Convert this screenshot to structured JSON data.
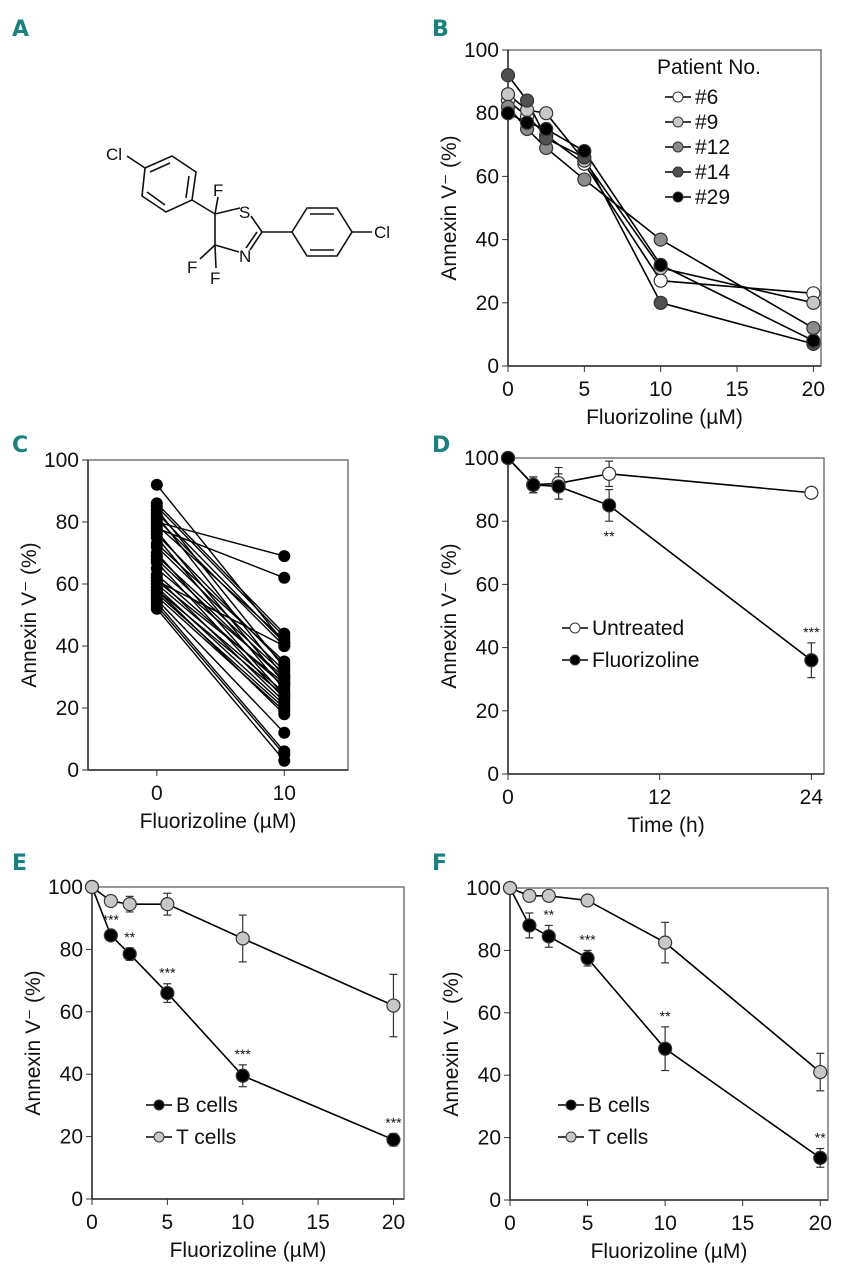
{
  "panel_labels": [
    "A",
    "B",
    "C",
    "D",
    "E",
    "F"
  ],
  "structure": {
    "atoms": {
      "cl1": "Cl",
      "cl2": "Cl",
      "f1": "F",
      "f2": "F",
      "f3": "F",
      "s": "S",
      "n": "N"
    }
  },
  "chart_data": [
    {
      "id": "B",
      "type": "line",
      "xlabel": "Fluorizoline (µM)",
      "ylabel": "Annexin V⁻ (%)",
      "xlim": [
        0,
        20.5
      ],
      "ylim": [
        0,
        100
      ],
      "xticks": [
        0,
        5,
        10,
        15,
        20
      ],
      "yticks": [
        0,
        20,
        40,
        60,
        80,
        100
      ],
      "legend_title": "Patient No.",
      "legend_position": "top-right",
      "x": [
        0,
        1.25,
        2.5,
        5,
        10,
        20
      ],
      "series": [
        {
          "name": "#6",
          "color": "#ffffff",
          "values": [
            84,
            79,
            73,
            64,
            27,
            23
          ]
        },
        {
          "name": "#9",
          "color": "#c8c8c8",
          "values": [
            86,
            81,
            80,
            65,
            31,
            20
          ]
        },
        {
          "name": "#12",
          "color": "#8c8c8c",
          "values": [
            82,
            75,
            69,
            59,
            40,
            12
          ]
        },
        {
          "name": "#14",
          "color": "#505050",
          "values": [
            92,
            84,
            72,
            66,
            20,
            7
          ]
        },
        {
          "name": "#29",
          "color": "#000000",
          "values": [
            80,
            77,
            75,
            68,
            32,
            8
          ]
        }
      ]
    },
    {
      "id": "C",
      "type": "line",
      "xlabel": "Fluorizoline (µM)",
      "ylabel": "Annexin V⁻ (%)",
      "xlim": [
        -5.4,
        15
      ],
      "ylim": [
        0,
        100
      ],
      "xticks": [
        0,
        10
      ],
      "yticks": [
        0,
        20,
        40,
        60,
        80,
        100
      ],
      "x": [
        0,
        10
      ],
      "pairs": [
        [
          92,
          41
        ],
        [
          86,
          44
        ],
        [
          85,
          43
        ],
        [
          84,
          33
        ],
        [
          83,
          41
        ],
        [
          82,
          30
        ],
        [
          81,
          40
        ],
        [
          80,
          69
        ],
        [
          79,
          42
        ],
        [
          78,
          62
        ],
        [
          77,
          28
        ],
        [
          76,
          34
        ],
        [
          75,
          26
        ],
        [
          72,
          32
        ],
        [
          70,
          24
        ],
        [
          69,
          31
        ],
        [
          68,
          29
        ],
        [
          67,
          23
        ],
        [
          63,
          27
        ],
        [
          62,
          22
        ],
        [
          61,
          40
        ],
        [
          60,
          25
        ],
        [
          59,
          21
        ],
        [
          58,
          18
        ],
        [
          57,
          20
        ],
        [
          56,
          19
        ],
        [
          55,
          12
        ],
        [
          54,
          6
        ],
        [
          53,
          5
        ],
        [
          52,
          3
        ],
        [
          61,
          28
        ],
        [
          65,
          30
        ],
        [
          73,
          35
        ],
        [
          58,
          24
        ]
      ]
    },
    {
      "id": "D",
      "type": "line",
      "xlabel": "Time (h)",
      "ylabel": "Annexin V⁻ (%)",
      "xlim": [
        0,
        25
      ],
      "ylim": [
        0,
        100
      ],
      "xticks": [
        0,
        12,
        24
      ],
      "yticks": [
        0,
        20,
        40,
        60,
        80,
        100
      ],
      "legend_position": "center",
      "x": [
        0,
        2,
        4,
        8,
        24
      ],
      "series": [
        {
          "name": "Untreated",
          "color": "#ffffff",
          "values": [
            100,
            91.5,
            92,
            95,
            89
          ],
          "errors": [
            0,
            2.5,
            5,
            4,
            1
          ],
          "stars": [
            "",
            "",
            "",
            "",
            ""
          ]
        },
        {
          "name": "Fluorizoline",
          "color": "#000000",
          "values": [
            100,
            91.5,
            91,
            85,
            36
          ],
          "errors": [
            0,
            2.5,
            4,
            5,
            5.5
          ],
          "stars": [
            "",
            "",
            "",
            "**",
            "***"
          ]
        }
      ]
    },
    {
      "id": "E",
      "type": "line",
      "xlabel": "Fluorizoline (µM)",
      "ylabel": "Annexin V⁻ (%)",
      "xlim": [
        0,
        20.7
      ],
      "ylim": [
        0,
        100
      ],
      "xticks": [
        0,
        5,
        10,
        15,
        20
      ],
      "yticks": [
        0,
        20,
        40,
        60,
        80,
        100
      ],
      "legend_position": "bottom-left",
      "x": [
        0,
        1.25,
        2.5,
        5,
        10,
        20
      ],
      "series": [
        {
          "name": "B cells",
          "color": "#000000",
          "values": [
            100,
            84.5,
            78.5,
            66,
            39.5,
            19
          ],
          "errors": [
            0,
            1.5,
            2,
            3,
            3.5,
            2
          ],
          "stars": [
            "",
            "***",
            "**",
            "***",
            "***",
            "***"
          ]
        },
        {
          "name": "T cells",
          "color": "#c8c8c8",
          "values": [
            100,
            95.5,
            94.5,
            94.5,
            83.5,
            62
          ],
          "errors": [
            0,
            1.5,
            2.5,
            3.5,
            7.5,
            10
          ],
          "stars": [
            "",
            "",
            "",
            "",
            "",
            ""
          ]
        }
      ]
    },
    {
      "id": "F",
      "type": "line",
      "xlabel": "Fluorizoline (µM)",
      "ylabel": "Annexin V⁻ (%)",
      "xlim": [
        0,
        20.5
      ],
      "ylim": [
        0,
        100
      ],
      "xticks": [
        0,
        5,
        10,
        15,
        20
      ],
      "yticks": [
        0,
        20,
        40,
        60,
        80,
        100
      ],
      "legend_position": "bottom-left",
      "x": [
        0,
        1.25,
        2.5,
        5,
        10,
        20
      ],
      "series": [
        {
          "name": "B cells",
          "color": "#000000",
          "values": [
            100,
            88,
            84.5,
            77.5,
            48.5,
            13.5
          ],
          "errors": [
            0,
            4,
            3.5,
            2.5,
            7,
            3
          ],
          "stars": [
            "",
            "*",
            "**",
            "***",
            "**",
            "**"
          ]
        },
        {
          "name": "T cells",
          "color": "#c8c8c8",
          "values": [
            100,
            97.5,
            97.5,
            96,
            82.5,
            41
          ],
          "errors": [
            0,
            0.5,
            0.5,
            1.5,
            6.5,
            6
          ],
          "stars": [
            "",
            "",
            "",
            "",
            "",
            ""
          ]
        }
      ]
    }
  ]
}
